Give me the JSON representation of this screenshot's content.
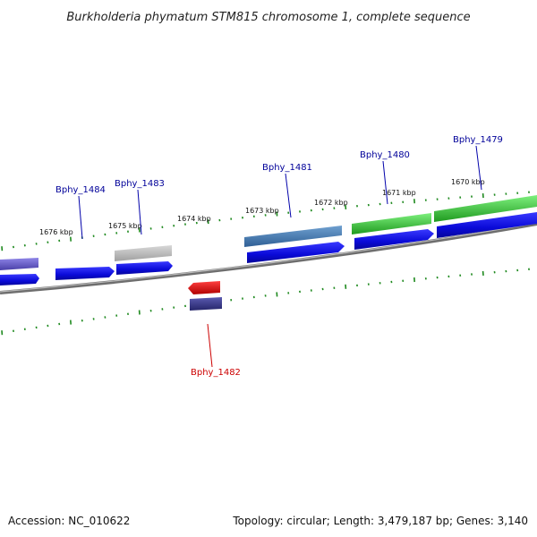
{
  "title": "Burkholderia phymatum STM815 chromosome 1, complete sequence",
  "footer": {
    "accession": "Accession: NC_010622",
    "summary": "Topology: circular; Length: 3,479,187 bp; Genes: 3,140"
  },
  "ticks": [
    {
      "label": "1676 kbp"
    },
    {
      "label": "1675 kbp"
    },
    {
      "label": "1674 kbp"
    },
    {
      "label": "1673 kbp"
    },
    {
      "label": "1672 kbp"
    },
    {
      "label": "1671 kbp"
    },
    {
      "label": "1670 kbp"
    }
  ],
  "genes": [
    {
      "name": "Bphy_1484",
      "color": "#000099"
    },
    {
      "name": "Bphy_1483",
      "color": "#000099"
    },
    {
      "name": "Bphy_1482",
      "color": "#cc0000"
    },
    {
      "name": "Bphy_1481",
      "color": "#000099"
    },
    {
      "name": "Bphy_1480",
      "color": "#000099"
    },
    {
      "name": "Bphy_1479",
      "color": "#000099"
    }
  ],
  "colors": {
    "backbone": "#7a7a7a",
    "tick": "#2a8a2a",
    "cds_forward": "#1010e0",
    "cds_reverse": "#1010e0",
    "gene_red": "#e01010",
    "gene_gray": "#b5b5b5",
    "gene_steel": "#4a7fb5",
    "gene_green": "#3ec83e",
    "gene_purple": "#6a5acd",
    "gene_navy": "#3a3a8a"
  }
}
